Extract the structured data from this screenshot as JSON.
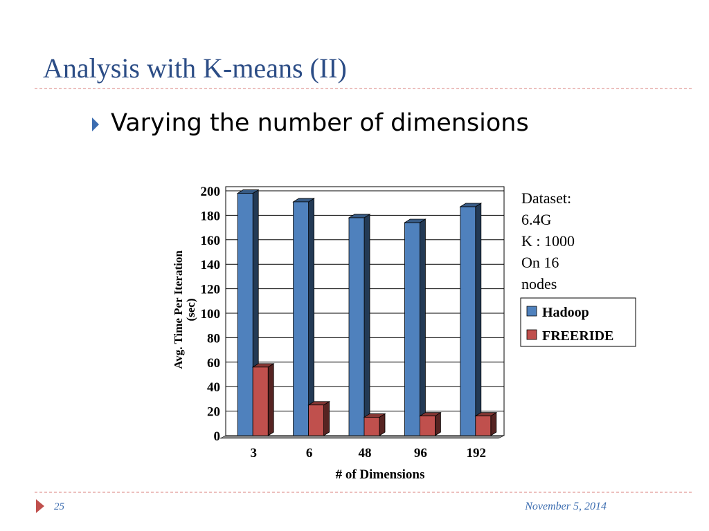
{
  "slide": {
    "title": "Analysis with K-means (II)",
    "bullet": "Varying the number of dimensions",
    "note": [
      "Dataset:",
      "6.4G",
      "K : 1000",
      "On 16",
      "nodes"
    ],
    "page_number": "25",
    "date": "November 5, 2014"
  },
  "chart_data": {
    "type": "bar3d",
    "x_label": "# of Dimensions",
    "y_label": [
      "Avg. Time Per Iteration",
      "(sec)"
    ],
    "categories": [
      "3",
      "6",
      "48",
      "96",
      "192"
    ],
    "series": [
      {
        "name": "Hadoop",
        "color": "#4f81bd",
        "values": [
          198,
          191,
          178,
          174,
          187
        ]
      },
      {
        "name": "FREERIDE",
        "color": "#c0504d",
        "values": [
          56,
          25,
          15,
          16,
          16
        ]
      }
    ],
    "ylim": [
      0,
      200
    ],
    "yticks": [
      0,
      20,
      40,
      60,
      80,
      100,
      120,
      140,
      160,
      180,
      200
    ],
    "grid": true,
    "legend": "right"
  }
}
